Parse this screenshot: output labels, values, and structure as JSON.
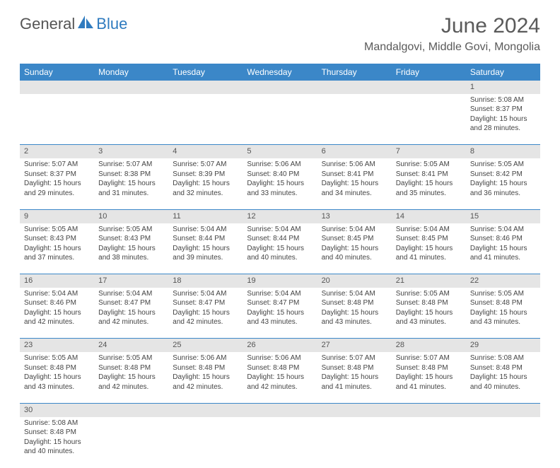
{
  "logo": {
    "text1": "General",
    "text2": "Blue"
  },
  "title": "June 2024",
  "location": "Mandalgovi, Middle Govi, Mongolia",
  "colors": {
    "header_bg": "#3b87c8",
    "header_text": "#ffffff",
    "daynum_bg": "#e5e5e5",
    "cell_border": "#3b87c8",
    "title_color": "#5a5a5a",
    "logo_gray": "#555555",
    "logo_blue": "#2f7bbf",
    "body_text": "#444444"
  },
  "day_headers": [
    "Sunday",
    "Monday",
    "Tuesday",
    "Wednesday",
    "Thursday",
    "Friday",
    "Saturday"
  ],
  "weeks": [
    {
      "nums": [
        "",
        "",
        "",
        "",
        "",
        "",
        "1"
      ],
      "cells": [
        "",
        "",
        "",
        "",
        "",
        "",
        "Sunrise: 5:08 AM\nSunset: 8:37 PM\nDaylight: 15 hours and 28 minutes."
      ]
    },
    {
      "nums": [
        "2",
        "3",
        "4",
        "5",
        "6",
        "7",
        "8"
      ],
      "cells": [
        "Sunrise: 5:07 AM\nSunset: 8:37 PM\nDaylight: 15 hours and 29 minutes.",
        "Sunrise: 5:07 AM\nSunset: 8:38 PM\nDaylight: 15 hours and 31 minutes.",
        "Sunrise: 5:07 AM\nSunset: 8:39 PM\nDaylight: 15 hours and 32 minutes.",
        "Sunrise: 5:06 AM\nSunset: 8:40 PM\nDaylight: 15 hours and 33 minutes.",
        "Sunrise: 5:06 AM\nSunset: 8:41 PM\nDaylight: 15 hours and 34 minutes.",
        "Sunrise: 5:05 AM\nSunset: 8:41 PM\nDaylight: 15 hours and 35 minutes.",
        "Sunrise: 5:05 AM\nSunset: 8:42 PM\nDaylight: 15 hours and 36 minutes."
      ]
    },
    {
      "nums": [
        "9",
        "10",
        "11",
        "12",
        "13",
        "14",
        "15"
      ],
      "cells": [
        "Sunrise: 5:05 AM\nSunset: 8:43 PM\nDaylight: 15 hours and 37 minutes.",
        "Sunrise: 5:05 AM\nSunset: 8:43 PM\nDaylight: 15 hours and 38 minutes.",
        "Sunrise: 5:04 AM\nSunset: 8:44 PM\nDaylight: 15 hours and 39 minutes.",
        "Sunrise: 5:04 AM\nSunset: 8:44 PM\nDaylight: 15 hours and 40 minutes.",
        "Sunrise: 5:04 AM\nSunset: 8:45 PM\nDaylight: 15 hours and 40 minutes.",
        "Sunrise: 5:04 AM\nSunset: 8:45 PM\nDaylight: 15 hours and 41 minutes.",
        "Sunrise: 5:04 AM\nSunset: 8:46 PM\nDaylight: 15 hours and 41 minutes."
      ]
    },
    {
      "nums": [
        "16",
        "17",
        "18",
        "19",
        "20",
        "21",
        "22"
      ],
      "cells": [
        "Sunrise: 5:04 AM\nSunset: 8:46 PM\nDaylight: 15 hours and 42 minutes.",
        "Sunrise: 5:04 AM\nSunset: 8:47 PM\nDaylight: 15 hours and 42 minutes.",
        "Sunrise: 5:04 AM\nSunset: 8:47 PM\nDaylight: 15 hours and 42 minutes.",
        "Sunrise: 5:04 AM\nSunset: 8:47 PM\nDaylight: 15 hours and 43 minutes.",
        "Sunrise: 5:04 AM\nSunset: 8:48 PM\nDaylight: 15 hours and 43 minutes.",
        "Sunrise: 5:05 AM\nSunset: 8:48 PM\nDaylight: 15 hours and 43 minutes.",
        "Sunrise: 5:05 AM\nSunset: 8:48 PM\nDaylight: 15 hours and 43 minutes."
      ]
    },
    {
      "nums": [
        "23",
        "24",
        "25",
        "26",
        "27",
        "28",
        "29"
      ],
      "cells": [
        "Sunrise: 5:05 AM\nSunset: 8:48 PM\nDaylight: 15 hours and 43 minutes.",
        "Sunrise: 5:05 AM\nSunset: 8:48 PM\nDaylight: 15 hours and 42 minutes.",
        "Sunrise: 5:06 AM\nSunset: 8:48 PM\nDaylight: 15 hours and 42 minutes.",
        "Sunrise: 5:06 AM\nSunset: 8:48 PM\nDaylight: 15 hours and 42 minutes.",
        "Sunrise: 5:07 AM\nSunset: 8:48 PM\nDaylight: 15 hours and 41 minutes.",
        "Sunrise: 5:07 AM\nSunset: 8:48 PM\nDaylight: 15 hours and 41 minutes.",
        "Sunrise: 5:08 AM\nSunset: 8:48 PM\nDaylight: 15 hours and 40 minutes."
      ]
    },
    {
      "nums": [
        "30",
        "",
        "",
        "",
        "",
        "",
        ""
      ],
      "cells": [
        "Sunrise: 5:08 AM\nSunset: 8:48 PM\nDaylight: 15 hours and 40 minutes.",
        "",
        "",
        "",
        "",
        "",
        ""
      ]
    }
  ]
}
